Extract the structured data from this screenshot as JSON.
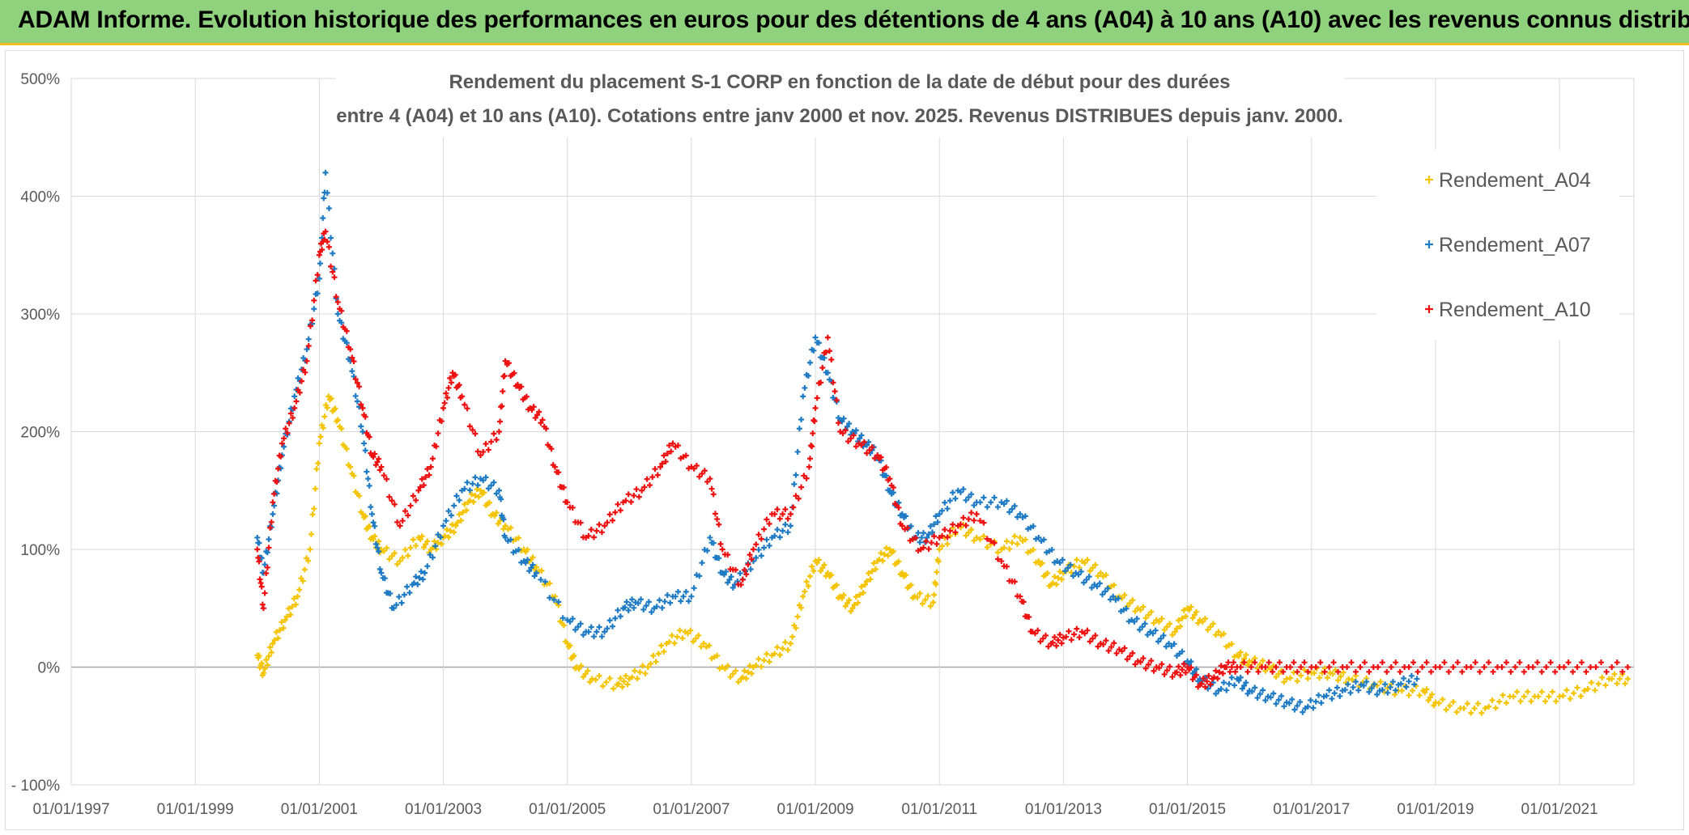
{
  "header": {
    "title": "ADAM Informe. Evolution historique des performances en euros pour des détentions de 4 ans (A04) à 10 ans (A10) avec les revenus connus distribués"
  },
  "chart_data": {
    "type": "scatter",
    "title_line1": "Rendement du placement S-1 CORP en fonction de la date de début pour des durées",
    "title_line2": "entre 4 (A04) et 10 ans (A10). Cotations entre janv 2000 et nov. 2025. Revenus DISTRIBUES depuis janv. 2000.",
    "xlabel": "",
    "ylabel": "",
    "x_unit": "year",
    "xlim": [
      1997.0,
      2022.2
    ],
    "ylim": [
      -100,
      500
    ],
    "x_ticks": [
      {
        "value": 1997,
        "label": "01/01/1997"
      },
      {
        "value": 1999,
        "label": "01/01/1999"
      },
      {
        "value": 2001,
        "label": "01/01/2001"
      },
      {
        "value": 2003,
        "label": "01/01/2003"
      },
      {
        "value": 2005,
        "label": "01/01/2005"
      },
      {
        "value": 2007,
        "label": "01/01/2007"
      },
      {
        "value": 2009,
        "label": "01/01/2009"
      },
      {
        "value": 2011,
        "label": "01/01/2011"
      },
      {
        "value": 2013,
        "label": "01/01/2013"
      },
      {
        "value": 2015,
        "label": "01/01/2015"
      },
      {
        "value": 2017,
        "label": "01/01/2017"
      },
      {
        "value": 2019,
        "label": "01/01/2019"
      },
      {
        "value": 2021,
        "label": "01/01/2021"
      }
    ],
    "y_ticks": [
      {
        "value": -100,
        "label": "- 100%"
      },
      {
        "value": 0,
        "label": "0%"
      },
      {
        "value": 100,
        "label": "100%"
      },
      {
        "value": 200,
        "label": "200%"
      },
      {
        "value": 300,
        "label": "300%"
      },
      {
        "value": 400,
        "label": "400%"
      },
      {
        "value": 500,
        "label": "500%"
      }
    ],
    "legend_position": "right",
    "grid": true,
    "series": [
      {
        "name": "Rendement_A04",
        "color": "#f5c400",
        "points": [
          [
            2000.0,
            10
          ],
          [
            2000.1,
            -5
          ],
          [
            2000.25,
            20
          ],
          [
            2000.45,
            40
          ],
          [
            2000.65,
            60
          ],
          [
            2000.85,
            100
          ],
          [
            2001.0,
            190
          ],
          [
            2001.15,
            230
          ],
          [
            2001.3,
            210
          ],
          [
            2001.5,
            170
          ],
          [
            2001.7,
            130
          ],
          [
            2001.85,
            110
          ],
          [
            2002.0,
            100
          ],
          [
            2002.3,
            90
          ],
          [
            2002.6,
            110
          ],
          [
            2002.8,
            100
          ],
          [
            2003.0,
            110
          ],
          [
            2003.2,
            120
          ],
          [
            2003.4,
            140
          ],
          [
            2003.6,
            150
          ],
          [
            2003.8,
            130
          ],
          [
            2004.0,
            120
          ],
          [
            2004.3,
            100
          ],
          [
            2004.5,
            85
          ],
          [
            2004.8,
            60
          ],
          [
            2005.0,
            20
          ],
          [
            2005.15,
            0
          ],
          [
            2005.4,
            -10
          ],
          [
            2005.8,
            -15
          ],
          [
            2006.0,
            -10
          ],
          [
            2006.3,
            0
          ],
          [
            2006.6,
            20
          ],
          [
            2006.9,
            30
          ],
          [
            2007.2,
            20
          ],
          [
            2007.5,
            0
          ],
          [
            2007.8,
            -10
          ],
          [
            2008.0,
            0
          ],
          [
            2008.3,
            10
          ],
          [
            2008.6,
            20
          ],
          [
            2008.8,
            60
          ],
          [
            2009.0,
            90
          ],
          [
            2009.2,
            80
          ],
          [
            2009.4,
            60
          ],
          [
            2009.6,
            50
          ],
          [
            2009.8,
            70
          ],
          [
            2010.0,
            90
          ],
          [
            2010.2,
            100
          ],
          [
            2010.4,
            80
          ],
          [
            2010.6,
            60
          ],
          [
            2010.9,
            55
          ],
          [
            2011.0,
            100
          ],
          [
            2011.3,
            120
          ],
          [
            2011.6,
            110
          ],
          [
            2012.0,
            100
          ],
          [
            2012.3,
            110
          ],
          [
            2012.6,
            90
          ],
          [
            2012.8,
            70
          ],
          [
            2013.0,
            80
          ],
          [
            2013.3,
            90
          ],
          [
            2013.6,
            80
          ],
          [
            2013.9,
            60
          ],
          [
            2014.2,
            50
          ],
          [
            2014.5,
            40
          ],
          [
            2014.8,
            30
          ],
          [
            2015.0,
            50
          ],
          [
            2015.2,
            40
          ],
          [
            2015.5,
            30
          ],
          [
            2015.8,
            10
          ],
          [
            2016.0,
            5
          ],
          [
            2016.3,
            0
          ],
          [
            2016.6,
            -10
          ],
          [
            2017.0,
            -5
          ],
          [
            2017.3,
            -5
          ],
          [
            2017.6,
            -10
          ],
          [
            2018.0,
            -15
          ],
          [
            2018.4,
            -20
          ],
          [
            2018.8,
            -20
          ],
          [
            2019.0,
            -30
          ],
          [
            2019.4,
            -35
          ],
          [
            2019.8,
            -35
          ],
          [
            2020.2,
            -25
          ],
          [
            2020.6,
            -25
          ],
          [
            2021.0,
            -25
          ],
          [
            2021.4,
            -20
          ],
          [
            2021.8,
            -10
          ],
          [
            2022.1,
            -10
          ]
        ]
      },
      {
        "name": "Rendement_A07",
        "color": "#1f7bc4",
        "points": [
          [
            2000.0,
            110
          ],
          [
            2000.1,
            80
          ],
          [
            2000.25,
            130
          ],
          [
            2000.4,
            180
          ],
          [
            2000.6,
            230
          ],
          [
            2000.8,
            270
          ],
          [
            2001.0,
            330
          ],
          [
            2001.1,
            420
          ],
          [
            2001.3,
            300
          ],
          [
            2001.5,
            260
          ],
          [
            2001.7,
            200
          ],
          [
            2001.85,
            130
          ],
          [
            2002.0,
            80
          ],
          [
            2002.2,
            50
          ],
          [
            2002.5,
            70
          ],
          [
            2002.7,
            80
          ],
          [
            2003.0,
            120
          ],
          [
            2003.3,
            150
          ],
          [
            2003.6,
            160
          ],
          [
            2003.9,
            150
          ],
          [
            2004.0,
            110
          ],
          [
            2004.3,
            90
          ],
          [
            2004.5,
            80
          ],
          [
            2005.0,
            40
          ],
          [
            2005.3,
            30
          ],
          [
            2005.6,
            30
          ],
          [
            2005.9,
            50
          ],
          [
            2006.1,
            55
          ],
          [
            2006.4,
            50
          ],
          [
            2006.7,
            60
          ],
          [
            2007.0,
            60
          ],
          [
            2007.3,
            110
          ],
          [
            2007.5,
            80
          ],
          [
            2007.7,
            70
          ],
          [
            2008.0,
            90
          ],
          [
            2008.3,
            110
          ],
          [
            2008.6,
            120
          ],
          [
            2008.8,
            230
          ],
          [
            2009.0,
            280
          ],
          [
            2009.2,
            250
          ],
          [
            2009.4,
            210
          ],
          [
            2009.6,
            200
          ],
          [
            2009.8,
            190
          ],
          [
            2010.0,
            180
          ],
          [
            2010.2,
            150
          ],
          [
            2010.4,
            130
          ],
          [
            2010.6,
            110
          ],
          [
            2010.8,
            110
          ],
          [
            2011.0,
            130
          ],
          [
            2011.3,
            150
          ],
          [
            2011.6,
            140
          ],
          [
            2012.0,
            140
          ],
          [
            2012.3,
            130
          ],
          [
            2012.6,
            110
          ],
          [
            2012.9,
            90
          ],
          [
            2013.2,
            80
          ],
          [
            2013.5,
            70
          ],
          [
            2013.8,
            60
          ],
          [
            2014.1,
            40
          ],
          [
            2014.4,
            30
          ],
          [
            2014.7,
            20
          ],
          [
            2015.0,
            5
          ],
          [
            2015.2,
            -10
          ],
          [
            2015.5,
            -20
          ],
          [
            2015.8,
            -10
          ],
          [
            2016.0,
            -20
          ],
          [
            2016.3,
            -25
          ],
          [
            2016.6,
            -30
          ],
          [
            2016.9,
            -35
          ],
          [
            2017.2,
            -25
          ],
          [
            2017.5,
            -20
          ],
          [
            2017.8,
            -15
          ],
          [
            2018.1,
            -20
          ],
          [
            2018.4,
            -15
          ],
          [
            2018.7,
            -10
          ]
        ]
      },
      {
        "name": "Rendement_A10",
        "color": "#ee1111",
        "points": [
          [
            2000.0,
            100
          ],
          [
            2000.1,
            50
          ],
          [
            2000.25,
            140
          ],
          [
            2000.4,
            190
          ],
          [
            2000.6,
            220
          ],
          [
            2000.8,
            260
          ],
          [
            2001.0,
            350
          ],
          [
            2001.1,
            370
          ],
          [
            2001.3,
            310
          ],
          [
            2001.5,
            270
          ],
          [
            2001.7,
            220
          ],
          [
            2001.85,
            180
          ],
          [
            2002.0,
            170
          ],
          [
            2002.3,
            120
          ],
          [
            2002.6,
            150
          ],
          [
            2002.8,
            170
          ],
          [
            2003.0,
            220
          ],
          [
            2003.15,
            250
          ],
          [
            2003.3,
            230
          ],
          [
            2003.6,
            180
          ],
          [
            2003.9,
            200
          ],
          [
            2004.0,
            260
          ],
          [
            2004.2,
            240
          ],
          [
            2004.4,
            220
          ],
          [
            2004.6,
            210
          ],
          [
            2004.8,
            170
          ],
          [
            2005.0,
            140
          ],
          [
            2005.3,
            110
          ],
          [
            2005.6,
            120
          ],
          [
            2005.9,
            140
          ],
          [
            2006.2,
            150
          ],
          [
            2006.5,
            170
          ],
          [
            2006.7,
            190
          ],
          [
            2007.0,
            170
          ],
          [
            2007.3,
            160
          ],
          [
            2007.5,
            100
          ],
          [
            2007.8,
            70
          ],
          [
            2008.0,
            100
          ],
          [
            2008.3,
            130
          ],
          [
            2008.6,
            130
          ],
          [
            2008.9,
            170
          ],
          [
            2009.0,
            220
          ],
          [
            2009.2,
            280
          ],
          [
            2009.4,
            200
          ],
          [
            2009.7,
            190
          ],
          [
            2010.0,
            180
          ],
          [
            2010.2,
            160
          ],
          [
            2010.4,
            120
          ],
          [
            2010.7,
            100
          ],
          [
            2011.0,
            110
          ],
          [
            2011.3,
            120
          ],
          [
            2011.6,
            130
          ],
          [
            2012.0,
            90
          ],
          [
            2012.3,
            60
          ],
          [
            2012.5,
            30
          ],
          [
            2012.8,
            20
          ],
          [
            2013.0,
            25
          ],
          [
            2013.3,
            30
          ],
          [
            2013.6,
            20
          ],
          [
            2013.9,
            15
          ],
          [
            2014.2,
            5
          ],
          [
            2014.5,
            0
          ],
          [
            2014.8,
            -5
          ],
          [
            2015.0,
            0
          ],
          [
            2015.2,
            -15
          ],
          [
            2015.4,
            -10
          ],
          [
            2015.6,
            0
          ],
          [
            2015.8,
            0
          ],
          [
            2016.2,
            0
          ],
          [
            2016.6,
            0
          ],
          [
            2017.0,
            0
          ],
          [
            2017.5,
            0
          ],
          [
            2018.0,
            0
          ],
          [
            2018.5,
            0
          ],
          [
            2019.0,
            0
          ],
          [
            2019.5,
            0
          ],
          [
            2020.0,
            0
          ],
          [
            2020.5,
            0
          ],
          [
            2021.0,
            0
          ],
          [
            2021.5,
            0
          ],
          [
            2022.1,
            0
          ]
        ]
      }
    ]
  }
}
